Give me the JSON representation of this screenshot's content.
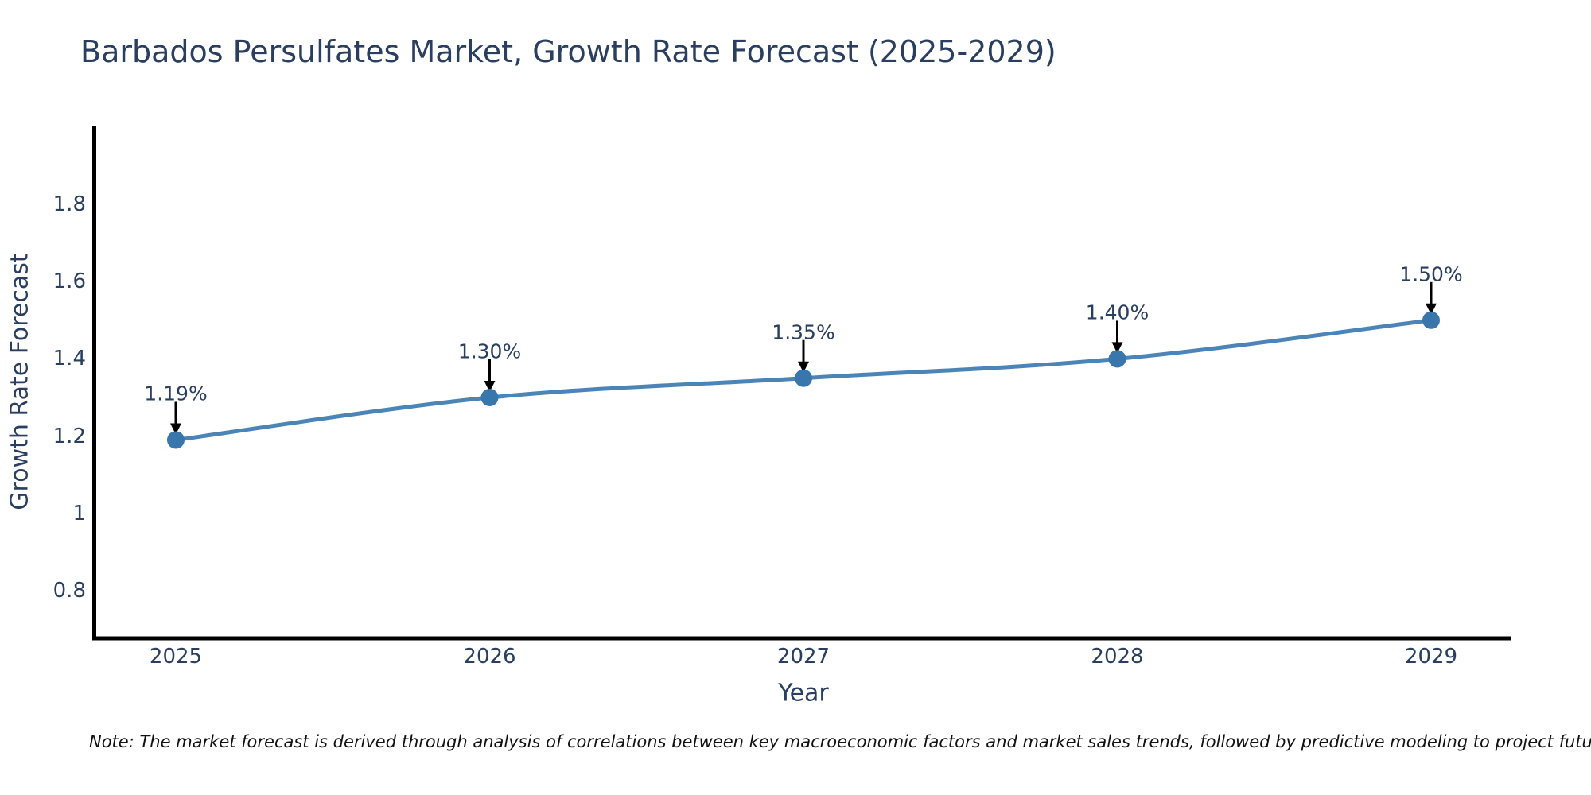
{
  "title": "Barbados Persulfates Market, Growth Rate Forecast (2025-2029)",
  "note": "Note: The market forecast is derived through analysis of correlations between key macroeconomic factors and market sales trends, followed by predictive modeling to project future sales",
  "chart_data": {
    "type": "line",
    "title": "Barbados Persulfates Market, Growth Rate Forecast (2025-2029)",
    "xlabel": "Year",
    "ylabel": "Growth Rate Forecast",
    "x": [
      2025,
      2026,
      2027,
      2028,
      2029
    ],
    "y": [
      1.19,
      1.3,
      1.35,
      1.4,
      1.5
    ],
    "point_labels": [
      "1.19%",
      "1.30%",
      "1.35%",
      "1.40%",
      "1.50%"
    ],
    "xtick_labels": [
      "2025",
      "2026",
      "2027",
      "2028",
      "2029"
    ],
    "xtick_values": [
      2025,
      2026,
      2027,
      2028,
      2029
    ],
    "ytick_labels": [
      "1.8",
      "1.6",
      "1.4",
      "1.2",
      "1",
      "0.8"
    ],
    "ytick_values": [
      1.8,
      1.6,
      1.4,
      1.2,
      1.0,
      0.8
    ],
    "xlim": [
      2024.73,
      2029.27
    ],
    "ylim": [
      0.68,
      2.0
    ],
    "grid": false,
    "legend": "none",
    "line_shape": "spline",
    "colors": {
      "line": "#4b84b6",
      "marker": "#3876ac",
      "axis_spine": "#000000",
      "text": "#2a3f5f",
      "annotation_arrow": "#000000"
    }
  }
}
